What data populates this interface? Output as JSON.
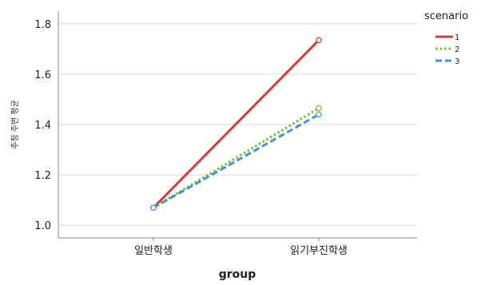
{
  "chart_data": {
    "type": "line",
    "xlabel": "group",
    "ylabel": "추정 주변 평균",
    "categories": [
      "일반학생",
      "읽기부진학생"
    ],
    "ylim": [
      0.95,
      1.85
    ],
    "yticks": [
      "1.0",
      "1.2",
      "1.4",
      "1.6",
      "1.8"
    ],
    "grid": true,
    "legend_title": "scenario",
    "legend_position": "right",
    "series": [
      {
        "name": "1",
        "values": [
          1.07,
          1.735
        ],
        "color": "#d63a3a",
        "dash": "solid"
      },
      {
        "name": "2",
        "values": [
          1.07,
          1.465
        ],
        "color": "#6cbf3a",
        "dash": "dotted"
      },
      {
        "name": "3",
        "values": [
          1.07,
          1.44
        ],
        "color": "#4a90d6",
        "dash": "dashed"
      }
    ]
  }
}
